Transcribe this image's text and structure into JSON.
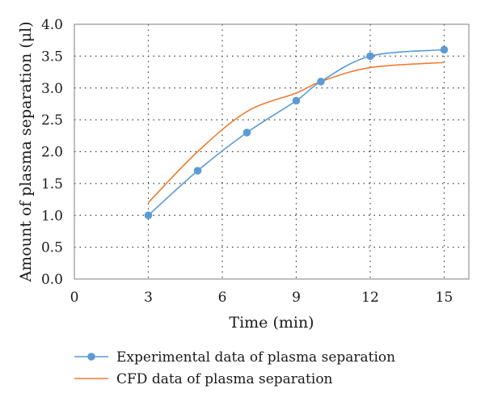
{
  "chart_data": {
    "type": "line",
    "title": "",
    "xlabel": "Time (min)",
    "ylabel": "Amount of plasma separation (μl)",
    "xlim": [
      0,
      16
    ],
    "ylim": [
      0,
      4.0
    ],
    "x_ticks": [
      0,
      3,
      6,
      9,
      12,
      15
    ],
    "x_tick_labels": [
      "0",
      "3",
      "6",
      "9",
      "12",
      "15"
    ],
    "y_ticks": [
      0,
      0.5,
      1.0,
      1.5,
      2.0,
      2.5,
      3.0,
      3.5,
      4.0
    ],
    "y_tick_labels": [
      "0.0",
      "0.5",
      "1.0",
      "1.5",
      "2.0",
      "2.5",
      "3.0",
      "3.5",
      "4.0"
    ],
    "grid": "dotted",
    "legend_position": "bottom",
    "series": [
      {
        "name": "Experimental data of plasma separation",
        "color": "#5b9bd5",
        "markers": true,
        "x": [
          3,
          5,
          7,
          9,
          10,
          12,
          15
        ],
        "y": [
          1.0,
          1.7,
          2.3,
          2.8,
          3.1,
          3.5,
          3.6
        ]
      },
      {
        "name": "CFD data of plasma separation",
        "color": "#ed7d31",
        "markers": false,
        "x": [
          3,
          5,
          7,
          9,
          10,
          12,
          15
        ],
        "y": [
          1.2,
          2.0,
          2.63,
          2.92,
          3.1,
          3.32,
          3.4
        ]
      }
    ]
  }
}
